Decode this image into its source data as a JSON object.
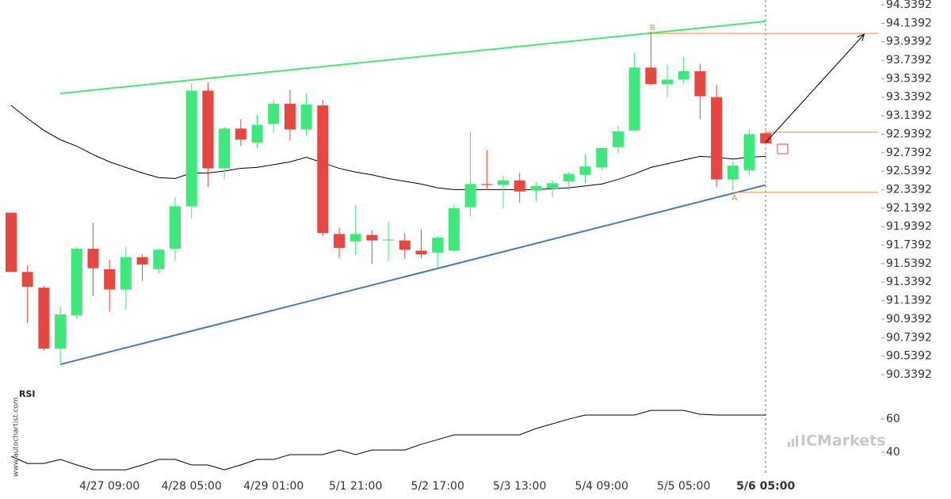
{
  "chart_data": [
    {
      "type": "candlestick",
      "categories": [
        null,
        null,
        null,
        null,
        null,
        null,
        "4/27 09:00",
        null,
        null,
        null,
        null,
        "4/28 05:00",
        null,
        null,
        null,
        null,
        "4/29 01:00",
        null,
        null,
        null,
        null,
        "5/1 21:00",
        null,
        null,
        null,
        null,
        "5/2 17:00",
        null,
        null,
        null,
        null,
        "5/3 13:00",
        null,
        null,
        null,
        null,
        "5/4 09:00",
        null,
        null,
        null,
        null,
        "5/5 05:00",
        null,
        null,
        null,
        null,
        "5/6 05:00"
      ],
      "open": [
        92.09,
        91.45,
        91.28,
        90.62,
        90.98,
        91.7,
        91.48,
        91.26,
        91.61,
        91.48,
        91.7,
        92.16,
        93.41,
        92.57,
        93.0,
        92.85,
        93.05,
        93.27,
        92.99,
        93.25,
        91.86,
        91.78,
        91.85,
        91.79,
        91.79,
        91.68,
        91.66,
        91.68,
        92.15,
        92.4,
        92.39,
        92.44,
        92.33,
        92.35,
        92.43,
        92.5,
        92.58,
        92.8,
        92.98,
        93.66,
        93.48,
        93.53,
        93.62,
        93.34,
        92.45,
        92.55,
        92.95
      ],
      "high": [
        92.09,
        91.52,
        91.3,
        91.07,
        91.72,
        91.98,
        91.58,
        91.72,
        91.64,
        91.7,
        92.26,
        93.49,
        93.5,
        93.02,
        93.1,
        93.15,
        93.31,
        93.42,
        93.38,
        93.31,
        91.93,
        92.17,
        91.9,
        91.99,
        91.87,
        91.91,
        91.84,
        92.18,
        92.97,
        92.77,
        92.49,
        92.52,
        92.42,
        92.44,
        92.53,
        92.72,
        92.79,
        93.03,
        93.82,
        94.05,
        93.69,
        93.78,
        93.7,
        93.47,
        92.65,
        92.99,
        92.97
      ],
      "low": [
        91.45,
        90.9,
        90.6,
        90.45,
        90.94,
        91.19,
        91.02,
        91.04,
        91.35,
        91.43,
        91.57,
        92.03,
        92.37,
        92.45,
        92.81,
        92.79,
        92.96,
        92.87,
        92.92,
        91.84,
        91.6,
        91.63,
        91.54,
        91.57,
        91.59,
        91.6,
        91.5,
        91.67,
        92.05,
        92.35,
        92.14,
        92.2,
        92.22,
        92.26,
        92.33,
        92.41,
        92.55,
        92.73,
        92.97,
        93.47,
        93.34,
        93.48,
        93.1,
        92.37,
        92.33,
        92.5,
        92.84
      ],
      "close": [
        91.45,
        91.29,
        90.62,
        90.99,
        91.7,
        91.49,
        91.26,
        91.61,
        91.53,
        91.69,
        92.16,
        93.41,
        92.57,
        93.0,
        92.88,
        93.04,
        93.27,
        92.99,
        93.26,
        91.87,
        91.71,
        91.86,
        91.79,
        91.8,
        91.69,
        91.64,
        91.82,
        92.14,
        92.4,
        92.39,
        92.44,
        92.32,
        92.38,
        92.41,
        92.51,
        92.59,
        92.79,
        92.97,
        93.66,
        93.48,
        93.53,
        93.62,
        93.35,
        92.45,
        92.6,
        92.94,
        92.84
      ],
      "up_color": "#3ee87a",
      "down_color": "#e8473f",
      "moving_average": {
        "color": "#000000",
        "values": [
          93.25,
          93.11,
          92.98,
          92.88,
          92.81,
          92.72,
          92.64,
          92.58,
          92.52,
          92.47,
          92.46,
          92.52,
          92.52,
          92.54,
          92.57,
          92.58,
          92.61,
          92.64,
          92.69,
          92.63,
          92.57,
          92.53,
          92.5,
          92.46,
          92.43,
          92.4,
          92.36,
          92.34,
          92.34,
          92.34,
          92.34,
          92.34,
          92.34,
          92.35,
          92.36,
          92.38,
          92.4,
          92.45,
          92.51,
          92.58,
          92.62,
          92.66,
          92.7,
          92.69,
          92.67,
          92.69,
          92.7
        ]
      },
      "trendlines": [
        {
          "color": "#4be37a",
          "x": [
            3,
            46
          ],
          "values": [
            93.38,
            94.16
          ]
        },
        {
          "color": "#4a78b0",
          "x": [
            3,
            46
          ],
          "values": [
            90.45,
            92.39
          ]
        },
        {
          "color": "#f08a3c",
          "x": [
            39,
            52.85
          ],
          "values": [
            94.03,
            94.03
          ]
        },
        {
          "color": "#f08a3c",
          "x": [
            46,
            52.85
          ],
          "values": [
            92.96,
            92.96
          ]
        },
        {
          "color": "#f08a3c",
          "x": [
            44,
            52.85
          ],
          "values": [
            92.31,
            92.31
          ]
        }
      ],
      "arrow": {
        "color": "#000000",
        "x": [
          46,
          52
        ],
        "values": [
          92.85,
          94.02
        ]
      },
      "annotations": [
        {
          "text": "B",
          "x": 39,
          "value": 94.09
        },
        {
          "text": "A",
          "x": 44,
          "value": 92.25
        }
      ],
      "ylim": [
        90.2792,
        94.3906
      ],
      "yticks": [
        94.3392,
        94.1392,
        93.9392,
        93.7392,
        93.5392,
        93.3392,
        93.1392,
        92.9392,
        92.7392,
        92.5392,
        92.3392,
        92.1392,
        91.9392,
        91.7392,
        91.5392,
        91.3392,
        91.1392,
        90.9392,
        90.7392,
        90.5392,
        90.3392
      ]
    },
    {
      "type": "line",
      "title": "RSI",
      "color": "#000000",
      "values": [
        37.6,
        33.3,
        33.3,
        35.7,
        32.4,
        29.5,
        29.5,
        29.5,
        32.4,
        35.7,
        35.7,
        32.4,
        32.4,
        29.5,
        32.4,
        35.7,
        35.7,
        38.6,
        38.6,
        38.6,
        41.4,
        38.6,
        41.4,
        41.4,
        41.4,
        44.8,
        47.6,
        50.5,
        50.5,
        50.5,
        50.5,
        50.5,
        54.3,
        57.1,
        60,
        62.4,
        62.4,
        62.4,
        62.4,
        65.2,
        65.2,
        65.2,
        62.9,
        62.4,
        62.4,
        62.4,
        62.4
      ],
      "ylim": [
        26.2,
        78.6
      ],
      "yticks": [
        40,
        60
      ]
    }
  ],
  "watermark": "www.autochartist.com",
  "brand": "ICMarkets"
}
